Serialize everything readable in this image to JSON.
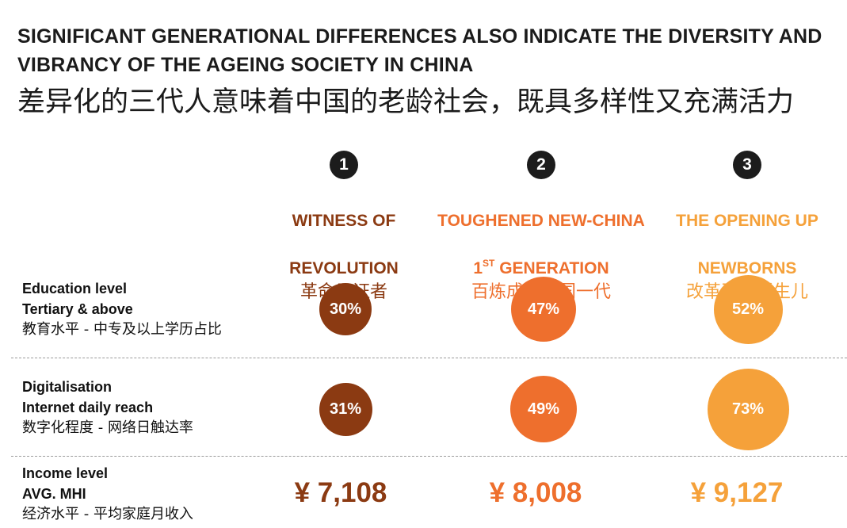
{
  "title": {
    "en": "SIGNIFICANT GENERATIONAL DIFFERENCES ALSO INDICATE THE DIVERSITY AND VIBRANCY OF THE AGEING SOCIETY IN CHINA",
    "zh": "差异化的三代人意味着中国的老龄社会，既具多样性又充满活力"
  },
  "colors": {
    "gen1": "#8b3a12",
    "gen2": "#ee6f2d",
    "gen3": "#f5a13a"
  },
  "generations": [
    {
      "number": "1",
      "name_line1": "WITNESS OF",
      "name_line2": "REVOLUTION",
      "name_zh": "革命见证者"
    },
    {
      "number": "2",
      "name_line1": "TOUGHENED NEW-CHINA",
      "name_line2_num": "1",
      "name_line2_sup": "ST",
      "name_line2_rest": " GENERATION",
      "name_zh": "百炼成金建国一代"
    },
    {
      "number": "3",
      "name_line1": "THE OPENING UP",
      "name_line2": "NEWBORNS",
      "name_zh": "改革开放新生儿"
    }
  ],
  "rows": {
    "education": {
      "label_en_1": "Education level",
      "label_en_2": "Tertiary & above",
      "label_zh": "教育水平 - 中专及以上学历占比",
      "values": [
        "30%",
        "47%",
        "52%"
      ],
      "fraction": [
        0.3,
        0.47,
        0.52
      ]
    },
    "digitalisation": {
      "label_en_1": "Digitalisation",
      "label_en_2": "Internet daily reach",
      "label_zh": "数字化程度 - 网络日触达率",
      "values": [
        "31%",
        "49%",
        "73%"
      ],
      "fraction": [
        0.31,
        0.49,
        0.73
      ]
    },
    "income": {
      "label_en_1": "Income level",
      "label_en_2": "AVG. MHI",
      "label_zh": "经济水平 - 平均家庭月收入",
      "values": [
        "¥ 7,108",
        "¥ 8,008",
        "¥ 9,127"
      ]
    }
  }
}
